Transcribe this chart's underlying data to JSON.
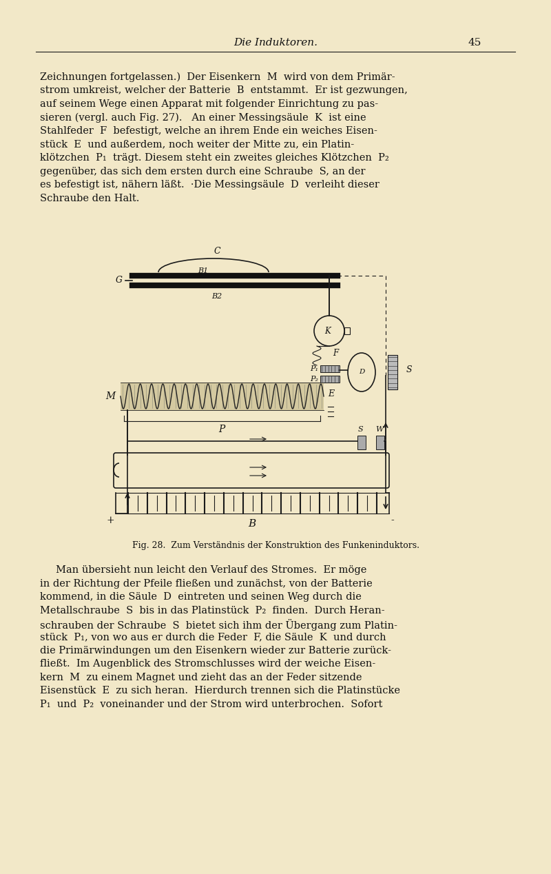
{
  "bg_color": "#F2E8C8",
  "page_width": 8.0,
  "page_height": 12.68,
  "header_text": "Die Induktoren.",
  "page_number": "45",
  "para1_lines": [
    "Zeichnungen fortgelassen.)  Der Eisenkern  M  wird von dem Primär-",
    "strom umkreist, welcher der Batterie  B  entstammt.  Er ist gezwungen,",
    "auf seinem Wege einen Apparat mit folgender Einrichtung zu pas-",
    "sieren (vergl. auch Fig. 27).   An einer Messingsäule  K  ist eine",
    "Stahlfeder  F  befestigt, welche an ihrem Ende ein weiches Eisen-",
    "stück  E  und außerdem, noch weiter der Mitte zu, ein Platin-",
    "klötzchen  P₁  trägt. Diesem steht ein zweites gleiches Klötzchen  P₂",
    "gegenüber, das sich dem ersten durch eine Schraube  S, an der",
    "es befestigt ist, nähern läßt.  ·Die Messingsäule  D  verleiht dieser",
    "Schraube den Halt."
  ],
  "fig_caption": "Fig. 28.  Zum Verständnis der Konstruktion des Funkeninduktors.",
  "para2_lines": [
    "     Man übersieht nun leicht den Verlauf des Stromes.  Er möge",
    "in der Richtung der Pfeile fließen und zunächst, von der Batterie",
    "kommend, in die Säule  D  eintreten und seinen Weg durch die",
    "Metallschraube  S  bis in das Platinstück  P₂  finden.  Durch Heran-",
    "schrauben der Schraube  S  bietet sich ihm der Übergang zum Platin-",
    "stück  P₁, von wo aus er durch die Feder  F, die Säule  K  und durch",
    "die Primärwindungen um den Eisenkern wieder zur Batterie zurück-",
    "fließt.  Im Augenblick des Stromschlusses wird der weiche Eisen-",
    "kern  M  zu einem Magnet und zieht das an der Feder sitzende",
    "Eisenstück  E  zu sich heran.  Hierdurch trennen sich die Platinstücke",
    "P₁  und  P₂  voneinander und der Strom wird unterbrochen.  Sofort"
  ],
  "text_color": "#111111",
  "line_color": "#1a1a1a"
}
